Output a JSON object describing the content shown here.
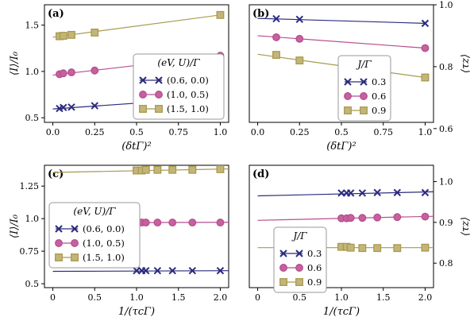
{
  "colors": {
    "blue": "#2b2c7d",
    "magenta": "#b54f8d",
    "olive": "#a89a4e",
    "magenta_face": "#c6609f",
    "olive_face": "#c3b57a"
  },
  "chart_data": [
    {
      "id": "a",
      "type": "line",
      "panel_label": "(a)",
      "xlabel": "(δtΓ)²",
      "ylabel": "⟨I⟩/I₀",
      "ylabel_side": "left",
      "xlim": [
        -0.05,
        1.05
      ],
      "ylim": [
        0.45,
        1.72
      ],
      "xticks": [
        0,
        0.25,
        0.5,
        0.75,
        1
      ],
      "xtick_labels": [
        "0.0",
        "0.25",
        "0.5",
        "0.75",
        "1.0"
      ],
      "yticks": [
        0.5,
        1.0,
        1.5
      ],
      "ytick_labels": [
        "0.5",
        "1.0",
        "1.5"
      ],
      "legend": {
        "title": "(eV, U)/Γ",
        "position": "center-right"
      },
      "series": [
        {
          "name": "(0.6, 0.0)",
          "color_key": "blue",
          "marker": "x",
          "x": [
            0.04,
            0.0625,
            0.1111,
            0.25,
            1.0
          ],
          "y": [
            0.6,
            0.61,
            0.615,
            0.63,
            0.72
          ],
          "fit": [
            [
              0,
              0.595
            ],
            [
              1.0,
              0.72
            ]
          ]
        },
        {
          "name": "(1.0, 0.5)",
          "color_key": "magenta",
          "marker": "circle",
          "x": [
            0.04,
            0.0625,
            0.1111,
            0.25,
            1.0
          ],
          "y": [
            0.97,
            0.98,
            0.99,
            1.01,
            1.17
          ],
          "fit": [
            [
              0,
              0.96
            ],
            [
              1.0,
              1.17
            ]
          ]
        },
        {
          "name": "(1.5, 1.0)",
          "color_key": "olive",
          "marker": "square",
          "x": [
            0.04,
            0.0625,
            0.1111,
            0.25,
            1.0
          ],
          "y": [
            1.38,
            1.385,
            1.395,
            1.42,
            1.61
          ],
          "fit": [
            [
              0,
              1.37
            ],
            [
              1.0,
              1.61
            ]
          ]
        }
      ]
    },
    {
      "id": "b",
      "type": "line",
      "panel_label": "(b)",
      "xlabel": "(δtΓ)²",
      "ylabel": "⟨τz⟩",
      "ylabel_side": "right",
      "xlim": [
        -0.05,
        1.05
      ],
      "ylim": [
        0.62,
        1.0
      ],
      "xticks": [
        0,
        0.25,
        0.5,
        0.75,
        1
      ],
      "xtick_labels": [
        "0.0",
        "0.25",
        "0.5",
        "0.75",
        "1.0"
      ],
      "yticks": [
        0.6,
        0.8,
        1.0
      ],
      "ytick_labels": [
        "0.6",
        "0.8",
        "1.0"
      ],
      "legend": {
        "title": "J/Γ",
        "position": "center-right"
      },
      "series": [
        {
          "name": "0.3",
          "color_key": "blue",
          "marker": "x",
          "x": [
            0.1111,
            0.25,
            1.0
          ],
          "y": [
            0.955,
            0.953,
            0.94
          ],
          "fit": [
            [
              0,
              0.956
            ],
            [
              1.0,
              0.94
            ]
          ]
        },
        {
          "name": "0.6",
          "color_key": "magenta",
          "marker": "circle",
          "x": [
            0.1111,
            0.25,
            1.0
          ],
          "y": [
            0.895,
            0.89,
            0.86
          ],
          "fit": [
            [
              0,
              0.9
            ],
            [
              1.0,
              0.86
            ]
          ]
        },
        {
          "name": "0.9",
          "color_key": "olive",
          "marker": "square",
          "x": [
            0.1111,
            0.25,
            1.0
          ],
          "y": [
            0.838,
            0.82,
            0.765
          ],
          "fit": [
            [
              0,
              0.84
            ],
            [
              1.0,
              0.765
            ]
          ]
        }
      ]
    },
    {
      "id": "c",
      "type": "line",
      "panel_label": "(c)",
      "xlabel": "1/(τcΓ)",
      "ylabel": "⟨I⟩/I₀",
      "ylabel_side": "left",
      "xlim": [
        -0.1,
        2.1
      ],
      "ylim": [
        0.47,
        1.41
      ],
      "xticks": [
        0,
        0.5,
        1,
        1.5,
        2
      ],
      "xtick_labels": [
        "0",
        "0.5",
        "1.0",
        "1.5",
        "2.0"
      ],
      "yticks": [
        0.5,
        0.75,
        1.0,
        1.25
      ],
      "ytick_labels": [
        "0.5",
        "0.75",
        "1.0",
        "1.25"
      ],
      "legend": {
        "title": "(eV, U)/Γ",
        "position": "center-left"
      },
      "series": [
        {
          "name": "(0.6, 0.0)",
          "color_key": "blue",
          "marker": "x",
          "x": [
            1.0,
            1.0625,
            1.1111,
            1.25,
            1.4286,
            1.6667,
            2.0
          ],
          "y": [
            0.6,
            0.6,
            0.6,
            0.6,
            0.6,
            0.6,
            0.6
          ],
          "fit": [
            [
              0,
              0.595
            ],
            [
              2.1,
              0.6
            ]
          ]
        },
        {
          "name": "(1.0, 0.5)",
          "color_key": "magenta",
          "marker": "circle",
          "x": [
            1.0,
            1.0625,
            1.1111,
            1.25,
            1.4286,
            1.6667,
            2.0
          ],
          "y": [
            0.97,
            0.97,
            0.97,
            0.97,
            0.97,
            0.97,
            0.97
          ],
          "fit": [
            [
              0,
              0.968
            ],
            [
              2.1,
              0.972
            ]
          ]
        },
        {
          "name": "(1.5, 1.0)",
          "color_key": "olive",
          "marker": "square",
          "x": [
            1.0,
            1.0625,
            1.1111,
            1.25,
            1.4286,
            1.6667,
            2.0
          ],
          "y": [
            1.37,
            1.37,
            1.375,
            1.375,
            1.375,
            1.375,
            1.38
          ],
          "fit": [
            [
              0,
              1.355
            ],
            [
              2.1,
              1.382
            ]
          ]
        }
      ]
    },
    {
      "id": "d",
      "type": "line",
      "panel_label": "(d)",
      "xlabel": "1/(τcΓ)",
      "ylabel": "⟨τz⟩",
      "ylabel_side": "right",
      "xlim": [
        -0.1,
        2.1
      ],
      "ylim": [
        0.74,
        1.04
      ],
      "xticks": [
        0,
        0.5,
        1,
        1.5,
        2
      ],
      "xtick_labels": [
        "0",
        "0.5",
        "1.0",
        "1.5",
        "2.0"
      ],
      "yticks": [
        0.8,
        0.9,
        1.0
      ],
      "ytick_labels": [
        "0.8",
        "0.9",
        "1.0"
      ],
      "legend": {
        "title": "J/Γ",
        "position": "center-left"
      },
      "series": [
        {
          "name": "0.3",
          "color_key": "blue",
          "marker": "x",
          "x": [
            1.0,
            1.0625,
            1.1111,
            1.25,
            1.4286,
            1.6667,
            2.0
          ],
          "y": [
            0.972,
            0.972,
            0.972,
            0.972,
            0.973,
            0.973,
            0.973
          ],
          "fit": [
            [
              0,
              0.965
            ],
            [
              2.1,
              0.975
            ]
          ]
        },
        {
          "name": "0.6",
          "color_key": "magenta",
          "marker": "circle",
          "x": [
            1.0,
            1.0625,
            1.1111,
            1.25,
            1.4286,
            1.6667,
            2.0
          ],
          "y": [
            0.91,
            0.91,
            0.911,
            0.911,
            0.912,
            0.913,
            0.914
          ],
          "fit": [
            [
              0,
              0.905
            ],
            [
              2.1,
              0.915
            ]
          ]
        },
        {
          "name": "0.9",
          "color_key": "olive",
          "marker": "square",
          "x": [
            1.0,
            1.0625,
            1.1111,
            1.25,
            1.4286,
            1.6667,
            2.0
          ],
          "y": [
            0.84,
            0.84,
            0.838,
            0.837,
            0.837,
            0.837,
            0.838
          ],
          "fit": [
            [
              0,
              0.838
            ],
            [
              2.1,
              0.838
            ]
          ]
        }
      ]
    }
  ]
}
